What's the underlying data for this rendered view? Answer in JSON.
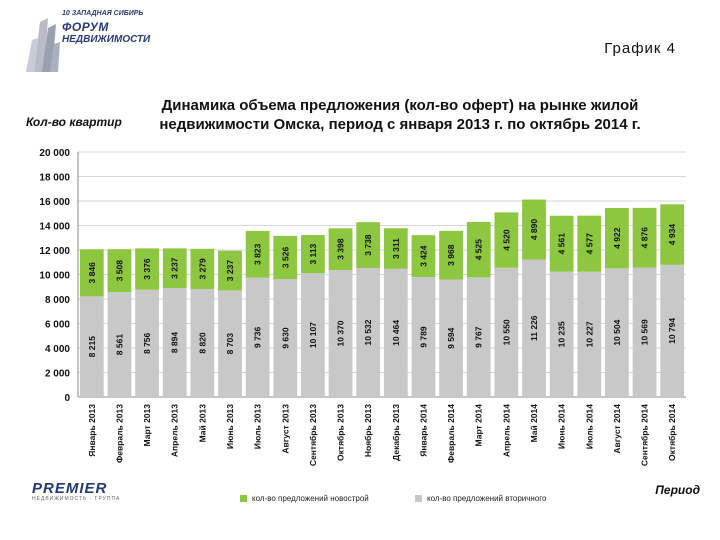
{
  "header": {
    "logo_top": "10 ЗАПАДНАЯ СИБИРЬ",
    "logo_line1": "ФОРУМ",
    "logo_line2": "НЕДВИЖИМОСТИ",
    "page_label": "График 4"
  },
  "footer": {
    "brand": "PREMIER",
    "brand_sub": "НЕДВИЖИМОСТЬ · ГРУППА"
  },
  "colors": {
    "new_build": "#8dc63f",
    "secondary": "#c8c8c8"
  },
  "chart_data": {
    "type": "bar",
    "stacked": true,
    "title": "Динамика объема предложения (кол-во оферт) на рынке жилой недвижимости Омска, период с января 2013 г. по октябрь 2014 г.",
    "ylabel": "Кол-во квартир",
    "xlabel": "Период",
    "ylim": [
      0,
      20000
    ],
    "yticks": [
      "0",
      "2 000",
      "4 000",
      "6 000",
      "8 000",
      "10 000",
      "12 000",
      "14 000",
      "16 000",
      "18 000",
      "20 000"
    ],
    "grid": true,
    "legend_position": "bottom",
    "categories": [
      "Январь 2013",
      "Февраль 2013",
      "Март 2013",
      "Апрель 2013",
      "Май 2013",
      "Июнь 2013",
      "Июль 2013",
      "Август 2013",
      "Сентябрь 2013",
      "Октябрь 2013",
      "Ноябрь 2013",
      "Декабрь 2013",
      "Январь 2014",
      "Февраль 2014",
      "Март 2014",
      "Апрель 2014",
      "Май 2014",
      "Июнь 2014",
      "Июль 2014",
      "Август 2014",
      "Сентябрь 2014",
      "Октябрь 2014"
    ],
    "series": [
      {
        "name": "кол-во предложений вторичного",
        "values": [
          8215,
          8561,
          8756,
          8894,
          8820,
          8703,
          9736,
          9630,
          10107,
          10370,
          10532,
          10464,
          9789,
          9594,
          9767,
          10550,
          11226,
          10235,
          10227,
          10504,
          10569,
          10794
        ],
        "labels": [
          "8 215",
          "8 561",
          "8 756",
          "8 894",
          "8 820",
          "8 703",
          "9 736",
          "9 630",
          "10 107",
          "10 370",
          "10 532",
          "10 464",
          "9 789",
          "9 594",
          "9 767",
          "10 550",
          "11 226",
          "10 235",
          "10 227",
          "10 504",
          "10 569",
          "10 794"
        ]
      },
      {
        "name": "кол-во предложений новострой",
        "values": [
          3846,
          3508,
          3376,
          3237,
          3279,
          3237,
          3823,
          3526,
          3113,
          3398,
          3738,
          3311,
          3424,
          3968,
          4525,
          4520,
          4890,
          4561,
          4577,
          4922,
          4876,
          4934
        ],
        "labels": [
          "3 846",
          "3 508",
          "3 376",
          "3 237",
          "3 279",
          "3 237",
          "3 823",
          "3 526",
          "3 113",
          "3 398",
          "3 738",
          "3 311",
          "3 424",
          "3 968",
          "4 525",
          "4 520",
          "4 890",
          "4 561",
          "4 577",
          "4 922",
          "4 876",
          "4 934"
        ]
      }
    ],
    "legend": [
      "кол-во предложений новострой",
      "кол-во предложений вторичного"
    ]
  }
}
